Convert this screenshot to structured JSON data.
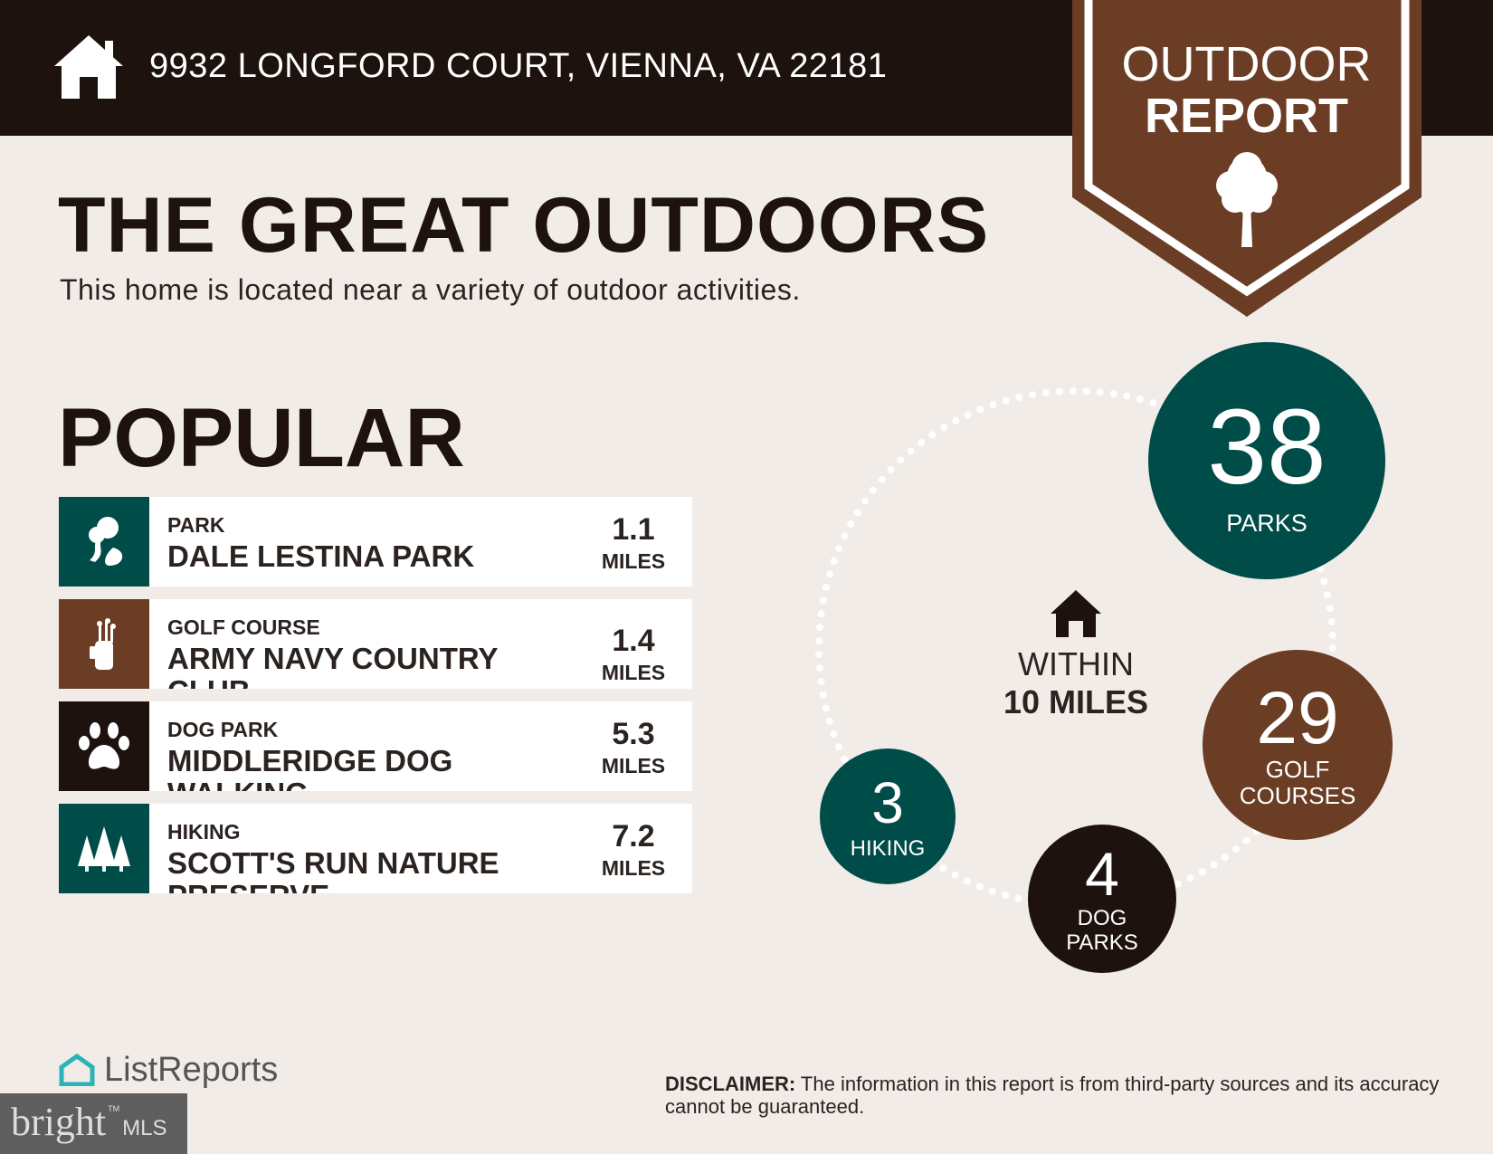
{
  "header": {
    "address": "9932 LONGFORD COURT, VIENNA, VA 22181",
    "icon": "house-icon"
  },
  "badge": {
    "line1": "OUTDOOR",
    "line2": "REPORT",
    "icon": "tree-icon",
    "color": "#6b3d24"
  },
  "title": "THE GREAT OUTDOORS",
  "subtitle": "This home is located near a variety of outdoor activities.",
  "popular": {
    "heading": "POPULAR",
    "items": [
      {
        "category": "PARK",
        "name": "DALE LESTINA PARK",
        "distance": "1.1",
        "unit": "MILES",
        "icon": "park-icon",
        "color": "#004c48"
      },
      {
        "category": "GOLF COURSE",
        "name": "ARMY NAVY COUNTRY CLUB",
        "distance": "1.4",
        "unit": "MILES",
        "icon": "golf-bag-icon",
        "color": "#6b3d24"
      },
      {
        "category": "DOG PARK",
        "name": "MIDDLERIDGE DOG WALKING",
        "distance": "5.3",
        "unit": "MILES",
        "icon": "paw-icon",
        "color": "#1d120e"
      },
      {
        "category": "HIKING",
        "name": "SCOTT'S RUN NATURE PRESERVE",
        "distance": "7.2",
        "unit": "MILES",
        "icon": "pine-trees-icon",
        "color": "#004c48"
      }
    ]
  },
  "summary": {
    "center_line1": "WITHIN",
    "center_line2": "10 MILES",
    "stats": [
      {
        "count": "38",
        "label": "PARKS",
        "color": "#004c48"
      },
      {
        "count": "29",
        "label1": "GOLF",
        "label2": "COURSES",
        "color": "#6b3d24"
      },
      {
        "count": "4",
        "label1": "DOG",
        "label2": "PARKS",
        "color": "#1d120e"
      },
      {
        "count": "3",
        "label": "HIKING",
        "color": "#004c48"
      }
    ]
  },
  "disclaimer": {
    "label": "DISCLAIMER:",
    "text": " The information in this report is from third-party sources and its accuracy cannot be guaranteed."
  },
  "footer": {
    "brand": "ListReports",
    "mls_brand": "bright",
    "mls_suffix": "MLS",
    "tm": "TM"
  }
}
